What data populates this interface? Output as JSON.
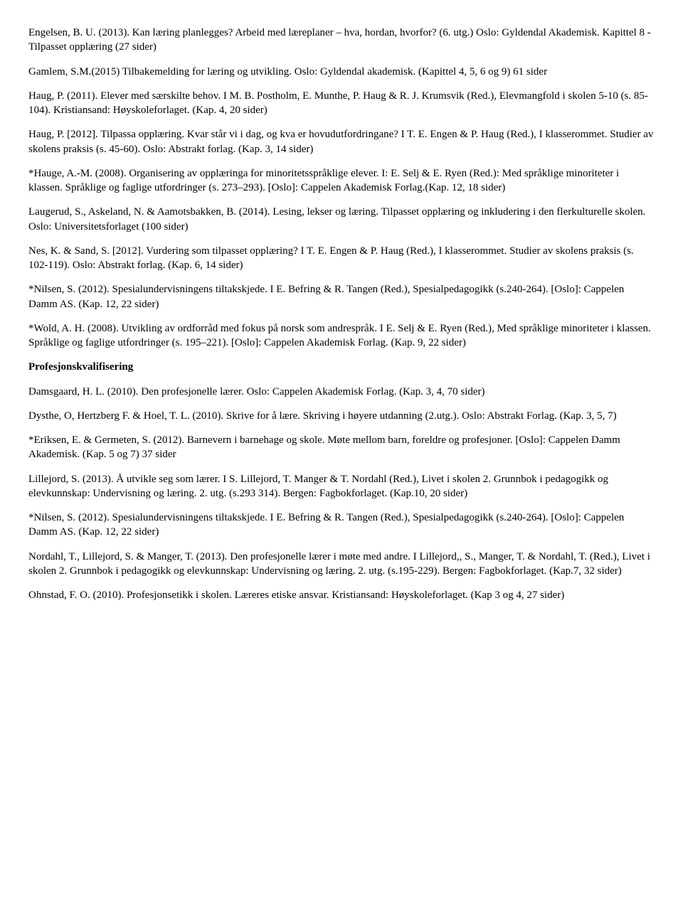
{
  "paragraphs": [
    {
      "text": "Engelsen, B. U. (2013). Kan læring planlegges? Arbeid med læreplaner – hva, hordan, hvorfor? (6. utg.) Oslo: Gyldendal Akademisk. Kapittel 8 - Tilpasset opplæring (27 sider)"
    },
    {
      "text": "Gamlem, S.M.(2015) Tilbakemelding for læring og utvikling. Oslo: Gyldendal akademisk. (Kapittel 4, 5, 6 og 9) 61 sider"
    },
    {
      "text": "Haug, P. (2011). Elever med særskilte behov. I M. B. Postholm, E. Munthe, P. Haug & R. J. Krumsvik (Red.), Elevmangfold i skolen 5-10 (s. 85-104). Kristiansand: Høyskoleforlaget. (Kap. 4, 20 sider)"
    },
    {
      "text": "Haug, P. [2012]. Tilpassa opplæring. Kvar står vi i dag, og kva er hovudutfordringane? I T. E. Engen & P. Haug (Red.), I klasserommet. Studier av skolens praksis (s. 45-60). Oslo: Abstrakt forlag. (Kap. 3, 14 sider)"
    },
    {
      "text": "*Hauge, A.-M. (2008). Organisering av opplæringa for minoritetsspråklige elever. I: E. Selj & E. Ryen (Red.): Med språklige minoriteter i klassen. Språklige og faglige utfordringer (s. 273–293). [Oslo]: Cappelen Akademisk Forlag.(Kap. 12, 18 sider)"
    },
    {
      "text": "Laugerud, S., Askeland, N. & Aamotsbakken, B. (2014). Lesing, lekser og læring. Tilpasset opplæring og inkludering i den flerkulturelle skolen. Oslo: Universitetsforlaget (100 sider)"
    },
    {
      "text": "Nes, K. & Sand, S. [2012]. Vurdering som tilpasset opplæring? I T. E. Engen & P. Haug (Red.), I klasserommet. Studier av skolens praksis (s. 102-119). Oslo: Abstrakt forlag. (Kap. 6, 14 sider)"
    },
    {
      "text": "*Nilsen, S. (2012). Spesialundervisningens tiltakskjede. I E. Befring & R. Tangen (Red.), Spesialpedagogikk (s.240-264). [Oslo]: Cappelen Damm AS. (Kap. 12, 22 sider)"
    },
    {
      "text": "*Wold, A. H. (2008). Utvikling av ordforråd med fokus på norsk som andrespråk. I E. Selj & E. Ryen (Red.), Med språklige minoriteter i klassen. Språklige og faglige utfordringer (s. 195–221). [Oslo]: Cappelen Akademisk Forlag. (Kap. 9, 22 sider)"
    },
    {
      "text": "Profesjonskvalifisering",
      "bold": true
    },
    {
      "text": "Damsgaard, H. L. (2010). Den profesjonelle lærer. Oslo: Cappelen Akademisk Forlag. (Kap. 3, 4, 70 sider)"
    },
    {
      "text": "Dysthe, O, Hertzberg F. & Hoel, T. L. (2010). Skrive for å lære. Skriving i høyere utdanning (2.utg.). Oslo: Abstrakt Forlag. (Kap. 3, 5, 7)"
    },
    {
      "text": "*Eriksen, E. & Germeten, S. (2012). Barnevern i barnehage og skole. Møte mellom barn, foreldre og profesjoner. [Oslo]: Cappelen Damm Akademisk. (Kap. 5 og 7) 37 sider"
    },
    {
      "text": "Lillejord, S. (2013). Å utvikle seg som lærer. I S. Lillejord, T. Manger & T. Nordahl (Red.), Livet i skolen 2. Grunnbok i pedagogikk og elevkunnskap: Undervisning og læring. 2. utg. (s.293 314). Bergen: Fagbokforlaget. (Kap.10, 20 sider)"
    },
    {
      "text": "*Nilsen, S. (2012). Spesialundervisningens tiltakskjede. I E. Befring & R. Tangen (Red.), Spesialpedagogikk (s.240-264). [Oslo]: Cappelen Damm AS. (Kap. 12, 22 sider)"
    },
    {
      "text": "Nordahl, T., Lillejord, S. & Manger, T. (2013). Den profesjonelle lærer i møte med andre. I Lillejord,, S., Manger, T. & Nordahl, T. (Red.), Livet i skolen 2. Grunnbok i pedagogikk og elevkunnskap: Undervisning og læring. 2. utg. (s.195-229). Bergen: Fagbokforlaget. (Kap.7, 32 sider)"
    },
    {
      "text": "Ohnstad, F. O. (2010). Profesjonsetikk i skolen. Læreres etiske ansvar. Kristiansand: Høyskoleforlaget. (Kap 3 og 4, 27 sider)"
    }
  ]
}
